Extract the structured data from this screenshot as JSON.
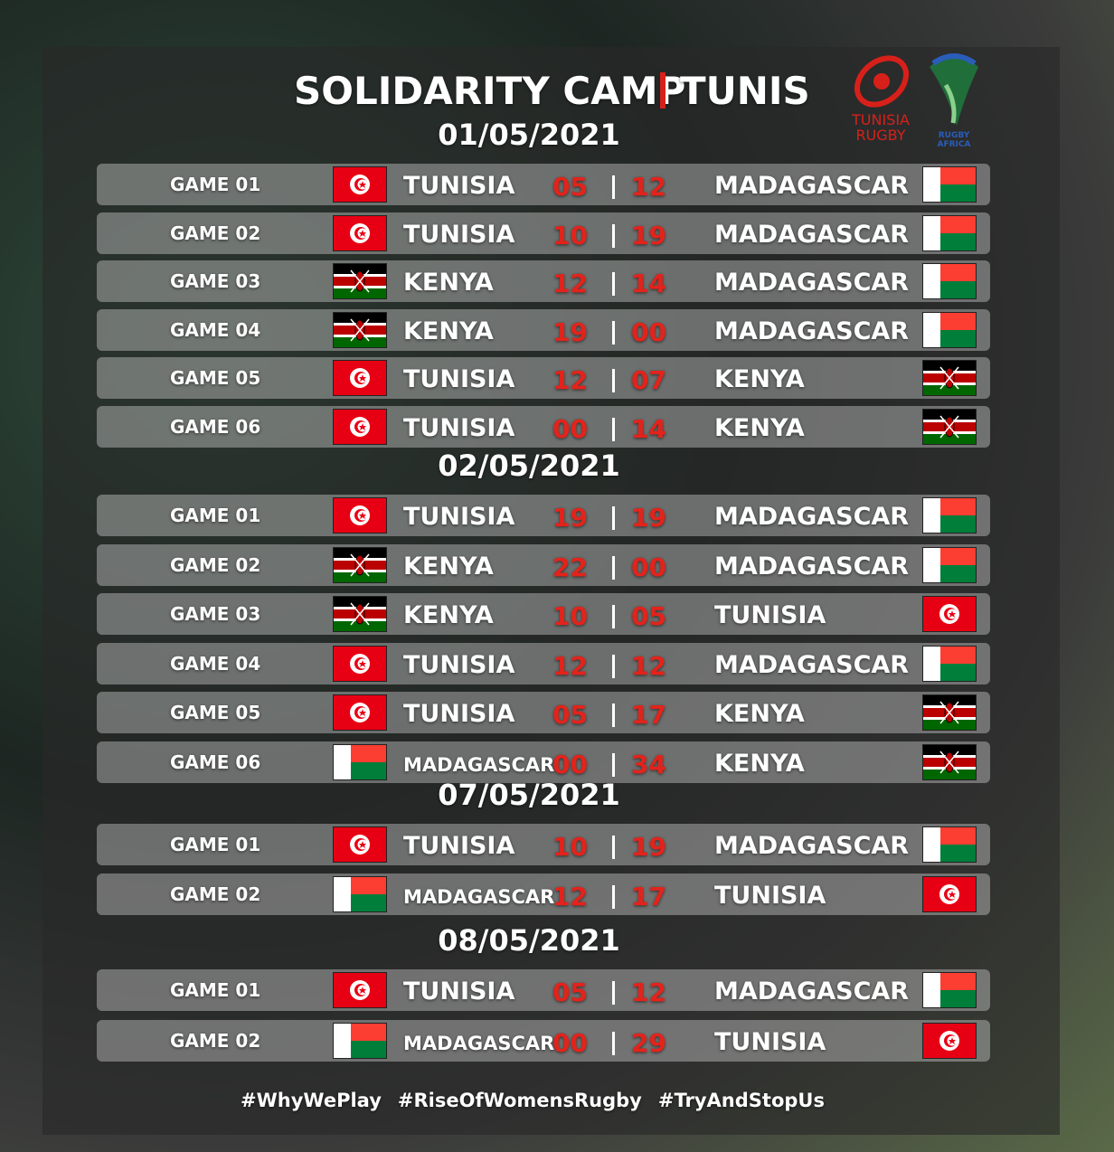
{
  "header": {
    "title": "SOLIDARITY CAMP",
    "location": "TUNIS",
    "logos": [
      {
        "lines": [
          "TUNISIA",
          "RUGBY"
        ]
      },
      {
        "lines": [
          "RUGBY",
          "AFRICA"
        ]
      }
    ]
  },
  "days": [
    {
      "date": "01/05/2021",
      "games": [
        {
          "game": "GAME 01",
          "home": "TUNISIA",
          "home_flag": "tn",
          "home_score": "05",
          "away_score": "12",
          "away": "MADAGASCAR",
          "away_flag": "mg"
        },
        {
          "game": "GAME 02",
          "home": "TUNISIA",
          "home_flag": "tn",
          "home_score": "10",
          "away_score": "19",
          "away": "MADAGASCAR",
          "away_flag": "mg"
        },
        {
          "game": "GAME 03",
          "home": "KENYA",
          "home_flag": "ke",
          "home_score": "12",
          "away_score": "14",
          "away": "MADAGASCAR",
          "away_flag": "mg"
        },
        {
          "game": "GAME 04",
          "home": "KENYA",
          "home_flag": "ke",
          "home_score": "19",
          "away_score": "00",
          "away": "MADAGASCAR",
          "away_flag": "mg"
        },
        {
          "game": "GAME 05",
          "home": "TUNISIA",
          "home_flag": "tn",
          "home_score": "12",
          "away_score": "07",
          "away": "KENYA",
          "away_flag": "ke"
        },
        {
          "game": "GAME 06",
          "home": "TUNISIA",
          "home_flag": "tn",
          "home_score": "00",
          "away_score": "14",
          "away": "KENYA",
          "away_flag": "ke"
        }
      ]
    },
    {
      "date": "02/05/2021",
      "games": [
        {
          "game": "GAME 01",
          "home": "TUNISIA",
          "home_flag": "tn",
          "home_score": "19",
          "away_score": "19",
          "away": "MADAGASCAR",
          "away_flag": "mg"
        },
        {
          "game": "GAME 02",
          "home": "KENYA",
          "home_flag": "ke",
          "home_score": "22",
          "away_score": "00",
          "away": "MADAGASCAR",
          "away_flag": "mg"
        },
        {
          "game": "GAME 03",
          "home": "KENYA",
          "home_flag": "ke",
          "home_score": "10",
          "away_score": "05",
          "away": "TUNISIA",
          "away_flag": "tn"
        },
        {
          "game": "GAME 04",
          "home": "TUNISIA",
          "home_flag": "tn",
          "home_score": "12",
          "away_score": "12",
          "away": "MADAGASCAR",
          "away_flag": "mg"
        },
        {
          "game": "GAME 05",
          "home": "TUNISIA",
          "home_flag": "tn",
          "home_score": "05",
          "away_score": "17",
          "away": "KENYA",
          "away_flag": "ke"
        },
        {
          "game": "GAME 06",
          "home": "MADAGASCAR",
          "home_flag": "mg",
          "home_score": "00",
          "away_score": "34",
          "away": "KENYA",
          "away_flag": "ke"
        }
      ]
    },
    {
      "date": "07/05/2021",
      "games": [
        {
          "game": "GAME 01",
          "home": "TUNISIA",
          "home_flag": "tn",
          "home_score": "10",
          "away_score": "19",
          "away": "MADAGASCAR",
          "away_flag": "mg"
        },
        {
          "game": "GAME 02",
          "home": "MADAGASCAR",
          "home_flag": "mg",
          "home_score": "12",
          "away_score": "17",
          "away": "TUNISIA",
          "away_flag": "tn"
        }
      ]
    },
    {
      "date": "08/05/2021",
      "games": [
        {
          "game": "GAME 01",
          "home": "TUNISIA",
          "home_flag": "tn",
          "home_score": "05",
          "away_score": "12",
          "away": "MADAGASCAR",
          "away_flag": "mg"
        },
        {
          "game": "GAME 02",
          "home": "MADAGASCAR",
          "home_flag": "mg",
          "home_score": "00",
          "away_score": "29",
          "away": "TUNISIA",
          "away_flag": "tn"
        }
      ]
    }
  ],
  "footer": {
    "hashtags": [
      "#WhyWePlay",
      "#RiseOfWomensRugby",
      "#TryAndStopUs"
    ]
  }
}
